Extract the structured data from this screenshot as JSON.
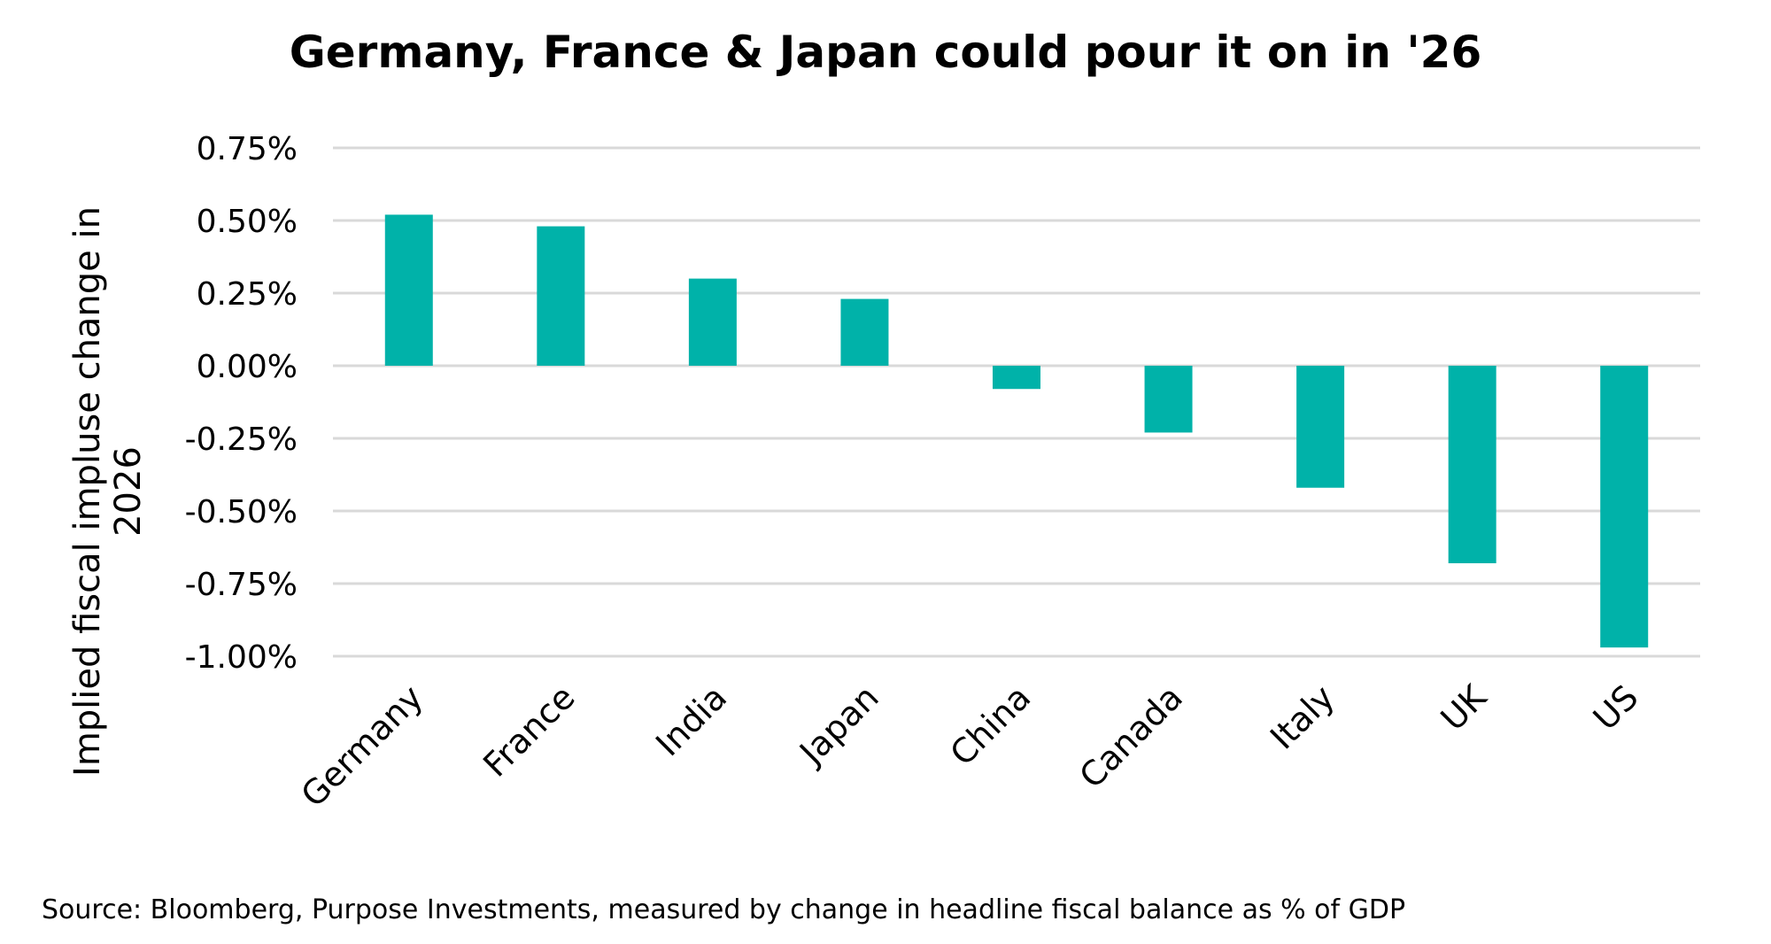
{
  "chart_data": {
    "type": "bar",
    "title": "Germany, France & Japan could pour it on in '26",
    "ylabel_lines": [
      "Implied fiscal impluse change in",
      "2026"
    ],
    "xlabel": "",
    "categories": [
      "Germany",
      "France",
      "India",
      "Japan",
      "China",
      "Canada",
      "Italy",
      "UK",
      "US"
    ],
    "values": [
      0.52,
      0.48,
      0.3,
      0.23,
      -0.08,
      -0.23,
      -0.42,
      -0.68,
      -0.97
    ],
    "value_unit": "%",
    "ylim": [
      -1.0,
      0.75
    ],
    "yticks": [
      0.75,
      0.5,
      0.25,
      0.0,
      -0.25,
      -0.5,
      -0.75,
      -1.0
    ],
    "ytick_labels": [
      "0.75%",
      "0.50%",
      "0.25%",
      "0.00%",
      "-0.25%",
      "-0.50%",
      "-0.75%",
      "-1.00%"
    ],
    "grid": true,
    "legend": "none",
    "bar_color": "#00B2A9",
    "grid_color": "#D9D9D9",
    "source": "Source: Bloomberg, Purpose Investments, measured by change in headline fiscal balance as % of GDP"
  }
}
